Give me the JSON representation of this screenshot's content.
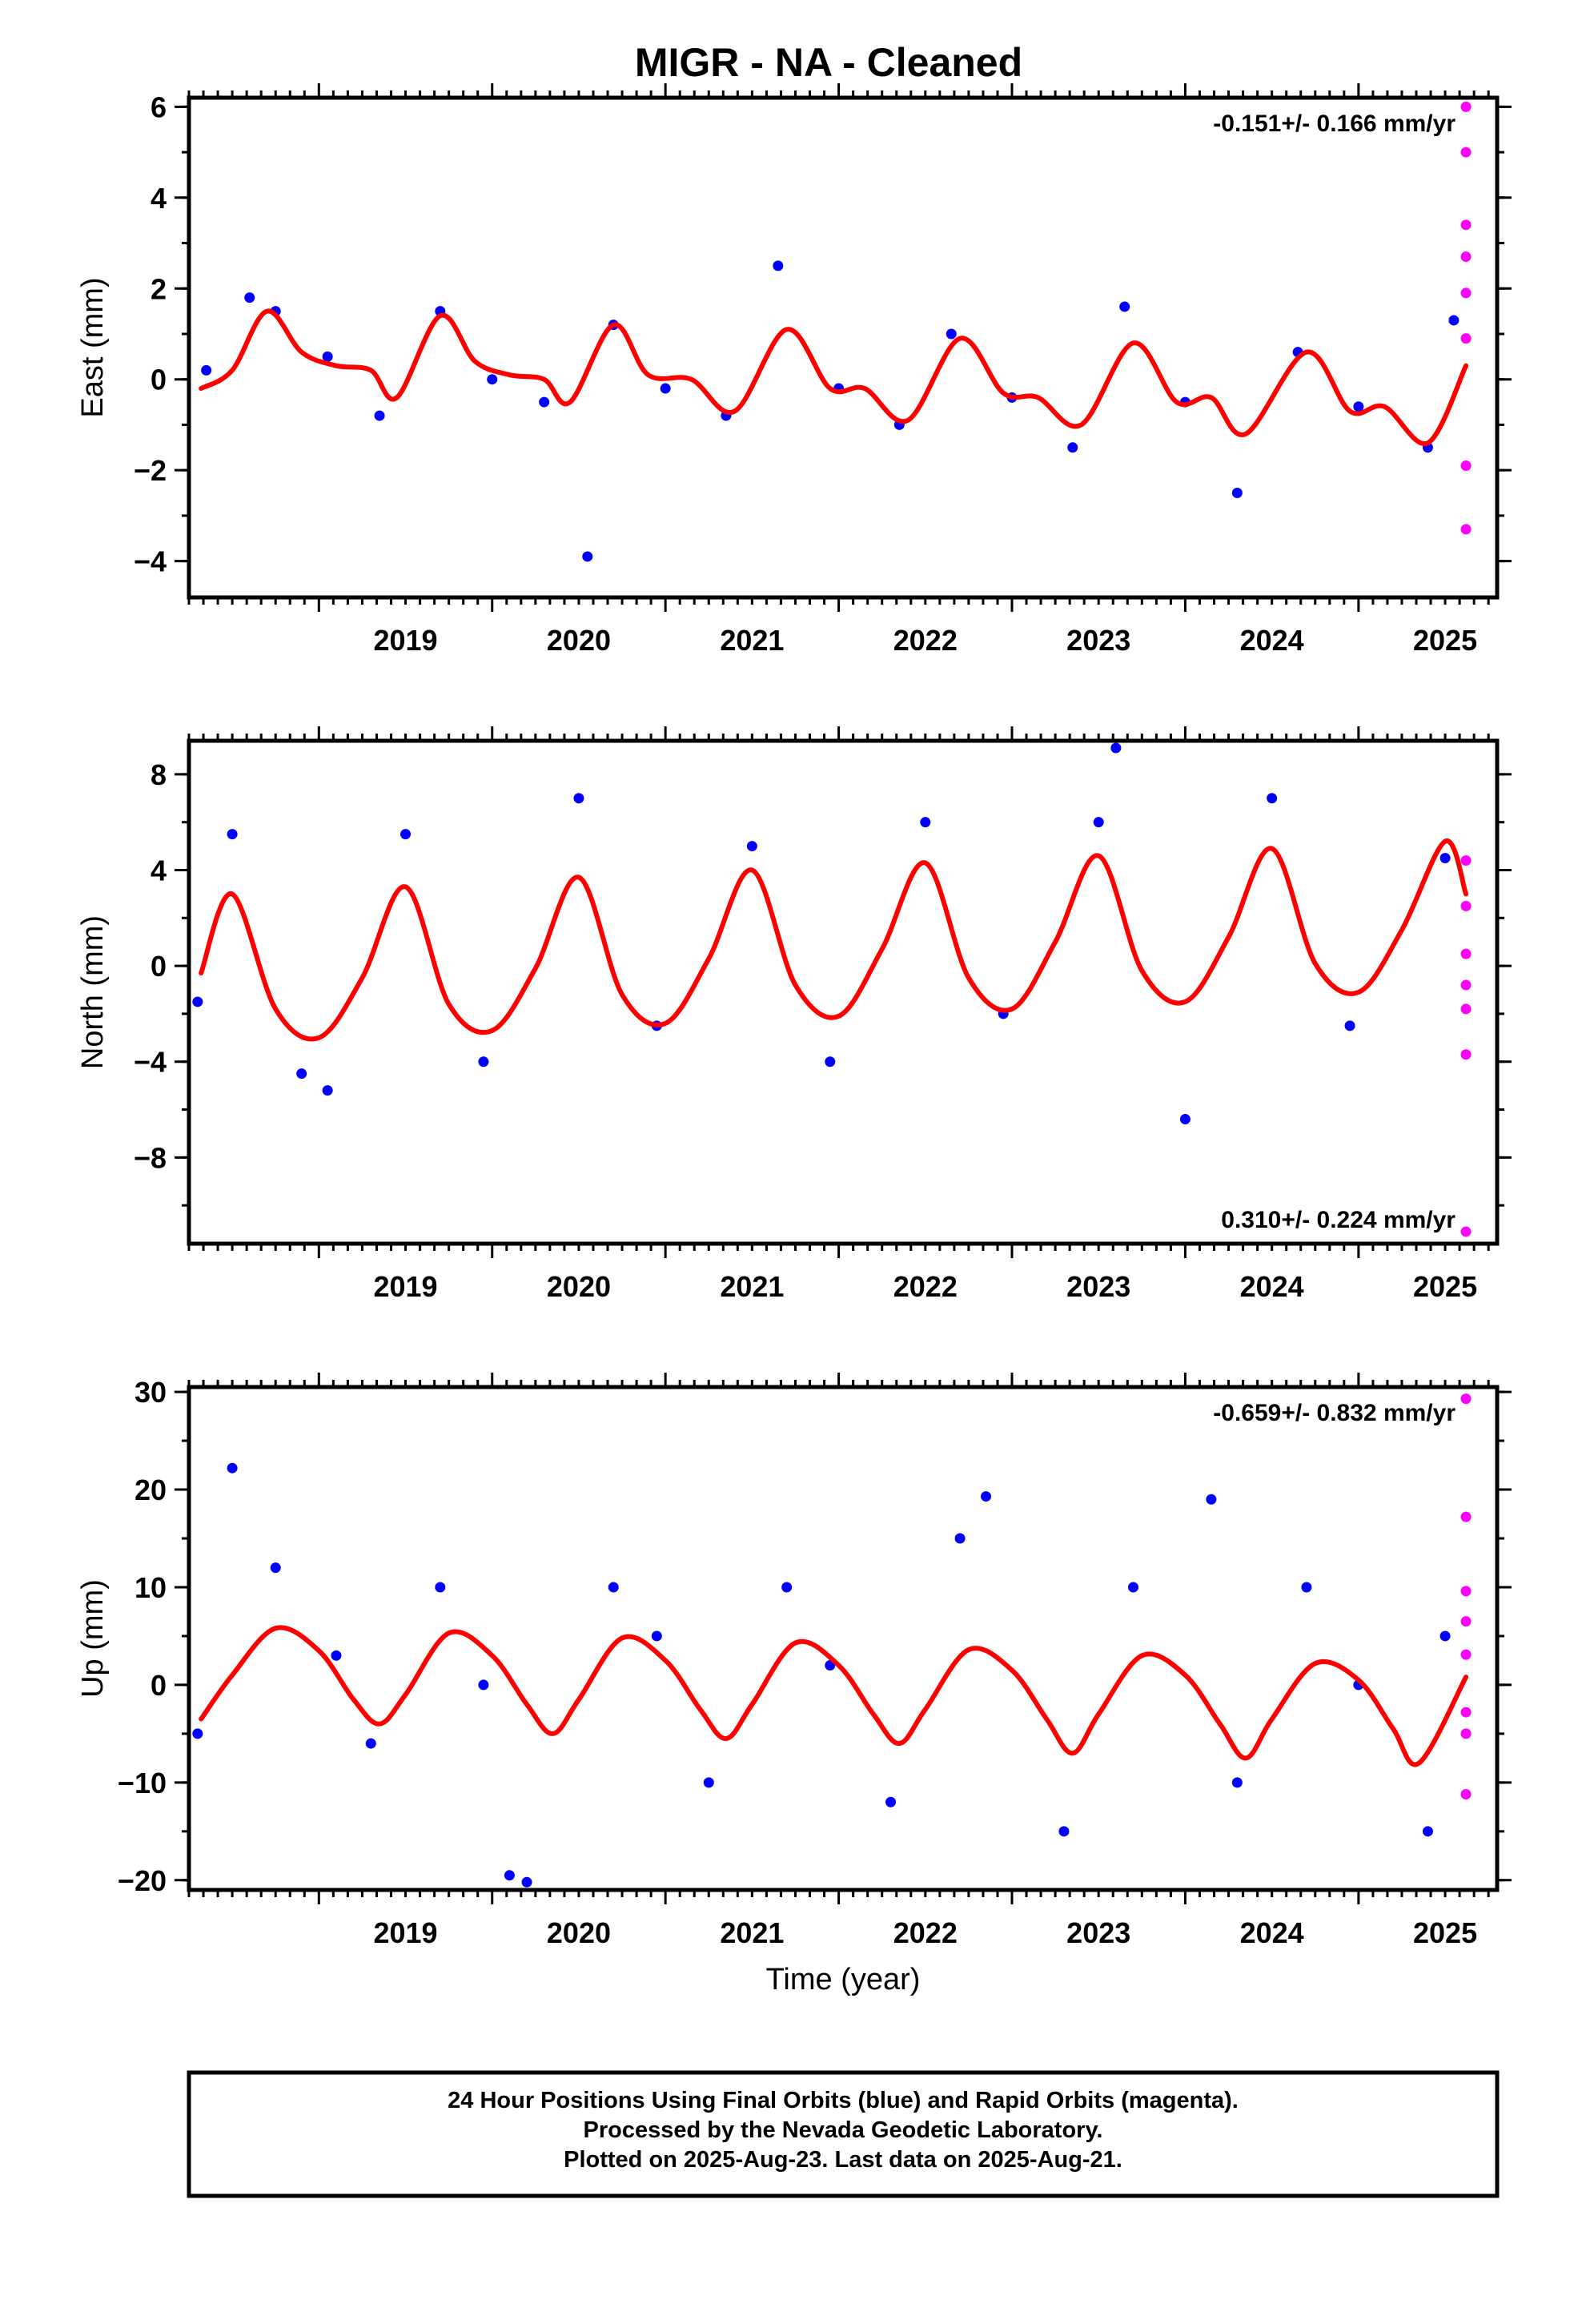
{
  "chart_data": {
    "title": "MIGR  - NA - Cleaned",
    "xlabel": "Time (year)",
    "xlim": [
      2018.25,
      2025.8
    ],
    "xticks": [
      "2019",
      "2020",
      "2021",
      "2022",
      "2023",
      "2024",
      "2025"
    ],
    "legend": "none",
    "grid": false,
    "panels": [
      {
        "type": "scatter",
        "ylabel": "East (mm)",
        "ylim": [
          -4.8,
          6.2
        ],
        "yticks": [
          "−4",
          "−2",
          "0",
          "2",
          "4",
          "6"
        ],
        "rate_text": "-0.151+/- 0.166 mm/yr",
        "rate_position": "top-right",
        "series": [
          {
            "name": "Final Orbits",
            "color": "#0000ff",
            "x": [
              2018.35,
              2018.6,
              2018.75,
              2019.05,
              2019.35,
              2019.7,
              2020.0,
              2020.3,
              2020.55,
              2020.7,
              2021.0,
              2021.35,
              2021.65,
              2022.0,
              2022.35,
              2022.65,
              2023.0,
              2023.35,
              2023.65,
              2024.0,
              2024.3,
              2024.65,
              2025.0,
              2025.4,
              2025.55
            ],
            "y": [
              0.2,
              1.8,
              1.5,
              0.5,
              -0.8,
              1.5,
              0.0,
              -0.5,
              -3.9,
              1.2,
              -0.2,
              -0.8,
              2.5,
              -0.2,
              -1.0,
              1.0,
              -0.4,
              -1.5,
              1.6,
              -0.5,
              -2.5,
              0.6,
              -0.6,
              -1.5,
              1.3
            ]
          },
          {
            "name": "Rapid Orbits",
            "color": "#ff00ff",
            "x": [
              2025.62,
              2025.62,
              2025.62,
              2025.62,
              2025.62,
              2025.62,
              2025.62,
              2025.62
            ],
            "y": [
              6.0,
              5.0,
              3.4,
              2.7,
              1.9,
              0.9,
              -1.9,
              -3.3
            ]
          }
        ],
        "model": {
          "name": "fit",
          "color": "#ff0000",
          "x": [
            2018.32,
            2018.5,
            2018.7,
            2018.9,
            2019.1,
            2019.3,
            2019.45,
            2019.7,
            2019.9,
            2020.1,
            2020.3,
            2020.45,
            2020.7,
            2020.9,
            2021.15,
            2021.4,
            2021.7,
            2021.95,
            2022.15,
            2022.4,
            2022.7,
            2022.95,
            2023.15,
            2023.4,
            2023.7,
            2023.95,
            2024.15,
            2024.35,
            2024.7,
            2024.95,
            2025.15,
            2025.4,
            2025.62
          ],
          "y": [
            -0.2,
            0.2,
            1.5,
            0.6,
            0.3,
            0.2,
            -0.4,
            1.4,
            0.4,
            0.1,
            0.0,
            -0.5,
            1.2,
            0.1,
            0.0,
            -0.7,
            1.1,
            -0.2,
            -0.2,
            -0.9,
            0.9,
            -0.3,
            -0.4,
            -1.0,
            0.8,
            -0.5,
            -0.4,
            -1.2,
            0.6,
            -0.7,
            -0.6,
            -1.4,
            0.3
          ]
        }
      },
      {
        "type": "scatter",
        "ylabel": "North (mm)",
        "ylim": [
          -11.6,
          9.4
        ],
        "yticks": [
          "−8",
          "−4",
          "0",
          "4",
          "8"
        ],
        "rate_text": "0.310+/- 0.224 mm/yr",
        "rate_position": "bottom-right",
        "series": [
          {
            "name": "Final Orbits",
            "color": "#0000ff",
            "x": [
              2018.3,
              2018.5,
              2018.9,
              2019.05,
              2019.5,
              2019.95,
              2020.5,
              2020.95,
              2021.5,
              2021.95,
              2022.5,
              2022.95,
              2023.5,
              2023.6,
              2024.0,
              2024.5,
              2024.95,
              2025.5
            ],
            "y": [
              -1.5,
              5.5,
              -4.5,
              -5.2,
              5.5,
              -4.0,
              7.0,
              -2.5,
              5.0,
              -4.0,
              6.0,
              -2.0,
              6.0,
              9.1,
              -6.4,
              7.0,
              -2.5,
              4.5
            ]
          },
          {
            "name": "Rapid Orbits",
            "color": "#ff00ff",
            "x": [
              2025.62,
              2025.62,
              2025.62,
              2025.62,
              2025.62,
              2025.62,
              2025.62
            ],
            "y": [
              4.4,
              2.5,
              0.5,
              -0.8,
              -1.8,
              -3.7,
              -11.1
            ]
          }
        ],
        "model": {
          "name": "fit",
          "color": "#ff0000",
          "x": [
            2018.32,
            2018.5,
            2018.75,
            2019.0,
            2019.25,
            2019.5,
            2019.75,
            2020.0,
            2020.25,
            2020.5,
            2020.75,
            2021.0,
            2021.25,
            2021.5,
            2021.75,
            2022.0,
            2022.25,
            2022.5,
            2022.75,
            2023.0,
            2023.25,
            2023.5,
            2023.75,
            2024.0,
            2024.25,
            2024.5,
            2024.75,
            2025.0,
            2025.25,
            2025.5,
            2025.62
          ],
          "y": [
            -0.3,
            3.0,
            -1.8,
            -3.0,
            -0.5,
            3.3,
            -1.6,
            -2.7,
            -0.1,
            3.7,
            -1.2,
            -2.4,
            0.3,
            4.0,
            -0.8,
            -2.1,
            0.7,
            4.3,
            -0.5,
            -1.8,
            1.0,
            4.6,
            -0.2,
            -1.5,
            1.2,
            4.9,
            0.1,
            -1.1,
            1.5,
            5.2,
            3.0
          ]
        }
      },
      {
        "type": "scatter",
        "ylabel": "Up (mm)",
        "ylim": [
          -21,
          30.5
        ],
        "yticks": [
          "−20",
          "−10",
          "0",
          "10",
          "20",
          "30"
        ],
        "rate_text": "-0.659+/- 0.832 mm/yr",
        "rate_position": "top-right",
        "series": [
          {
            "name": "Final Orbits",
            "color": "#0000ff",
            "x": [
              2018.3,
              2018.5,
              2018.75,
              2019.1,
              2019.3,
              2019.7,
              2019.95,
              2020.1,
              2020.2,
              2020.7,
              2020.95,
              2021.25,
              2021.7,
              2021.95,
              2022.3,
              2022.7,
              2022.85,
              2023.3,
              2023.7,
              2024.15,
              2024.3,
              2024.7,
              2025.0,
              2025.4,
              2025.5
            ],
            "y": [
              -5.0,
              22.2,
              12.0,
              3.0,
              -6.0,
              10.0,
              0.0,
              -19.5,
              -20.2,
              10.0,
              5.0,
              -10.0,
              10.0,
              2.0,
              -12.0,
              15.0,
              19.3,
              -15.0,
              10.0,
              19.0,
              -10.0,
              10.0,
              0.0,
              -15.0,
              5.0
            ]
          },
          {
            "name": "Rapid Orbits",
            "color": "#ff00ff",
            "x": [
              2025.62,
              2025.62,
              2025.62,
              2025.62,
              2025.62,
              2025.62,
              2025.62,
              2025.62
            ],
            "y": [
              29.3,
              17.2,
              9.6,
              6.5,
              3.1,
              -2.8,
              -5.0,
              -11.2
            ]
          }
        ],
        "model": {
          "name": "fit",
          "color": "#ff0000",
          "x": [
            2018.32,
            2018.5,
            2018.75,
            2019.0,
            2019.2,
            2019.35,
            2019.5,
            2019.75,
            2020.0,
            2020.2,
            2020.35,
            2020.5,
            2020.75,
            2021.0,
            2021.2,
            2021.35,
            2021.5,
            2021.75,
            2022.0,
            2022.2,
            2022.35,
            2022.5,
            2022.75,
            2023.0,
            2023.2,
            2023.35,
            2023.5,
            2023.75,
            2024.0,
            2024.2,
            2024.35,
            2024.5,
            2024.75,
            2025.0,
            2025.2,
            2025.35,
            2025.62
          ],
          "y": [
            -3.5,
            1.0,
            5.8,
            3.5,
            -1.5,
            -4.0,
            -1.0,
            5.3,
            3.0,
            -2.0,
            -5.0,
            -1.5,
            4.8,
            2.5,
            -2.5,
            -5.5,
            -2.0,
            4.3,
            2.0,
            -3.0,
            -6.0,
            -2.5,
            3.6,
            1.5,
            -3.5,
            -7.0,
            -3.0,
            3.0,
            1.0,
            -4.0,
            -7.5,
            -3.5,
            2.2,
            0.5,
            -4.5,
            -8.0,
            0.8
          ]
        }
      }
    ]
  },
  "footer": {
    "line1": "24 Hour Positions Using Final Orbits (blue) and Rapid Orbits (magenta).",
    "line2": "Processed by the Nevada Geodetic Laboratory.",
    "line3": "Plotted on 2025-Aug-23. Last data on 2025-Aug-21."
  }
}
